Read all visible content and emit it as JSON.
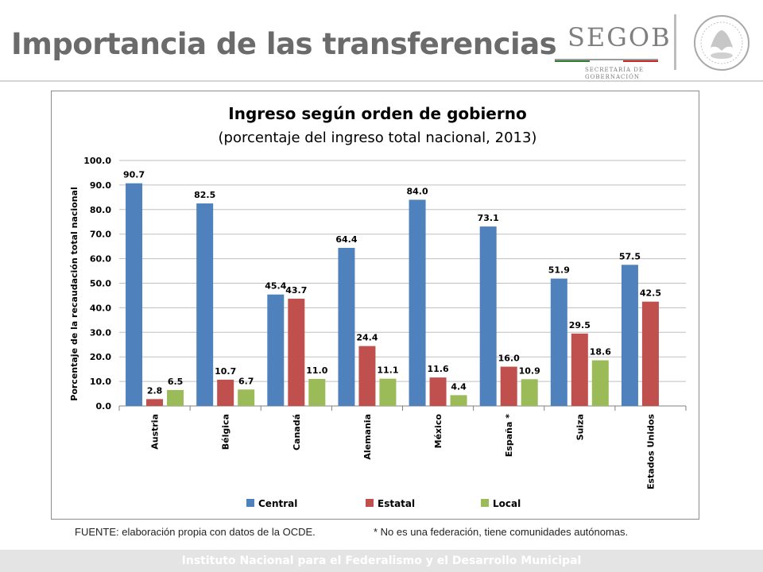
{
  "slide": {
    "title": "Importancia de las transferencias",
    "logo_text": "SEGOB",
    "logo_sub1": "SECRETARÍA DE",
    "logo_sub2": "GOBERNACIÓN",
    "source_note": "FUENTE: elaboración propia con datos de la OCDE.",
    "footnote": "* No es una federación, tiene comunidades autónomas.",
    "footer": "Instituto Nacional para el Federalismo y el Desarrollo Municipal"
  },
  "colors": {
    "central": "#4f81bd",
    "estatal": "#c0504d",
    "local": "#9bbb59",
    "title_gray": "#6b6b6b"
  },
  "chart_data": {
    "type": "bar",
    "title": "Ingreso según orden de gobierno",
    "subtitle": "(porcentaje del ingreso total nacional, 2013)",
    "xlabel": "",
    "ylabel": "Porcentaje de la recaudación total nacional",
    "ylim": [
      0,
      100
    ],
    "yticks": [
      "0.0",
      "10.0",
      "20.0",
      "30.0",
      "40.0",
      "50.0",
      "60.0",
      "70.0",
      "80.0",
      "90.0",
      "100.0"
    ],
    "grid": true,
    "legend": "bottom",
    "categories": [
      "Austria",
      "Bélgica",
      "Canadá",
      "Alemania",
      "México",
      "España *",
      "Suiza",
      "Estados Unidos"
    ],
    "series": [
      {
        "name": "Central",
        "color": "#4f81bd",
        "values": [
          90.7,
          82.5,
          45.4,
          64.4,
          84.0,
          73.1,
          51.9,
          57.5
        ],
        "labels": [
          "90.7",
          "82.5",
          "45.4",
          "64.4",
          "84.0",
          "73.1",
          "51.9",
          "57.5"
        ]
      },
      {
        "name": "Estatal",
        "color": "#c0504d",
        "values": [
          2.8,
          10.7,
          43.7,
          24.4,
          11.6,
          16.0,
          29.5,
          42.5
        ],
        "labels": [
          "2.8",
          "10.7",
          "43.7",
          "24.4",
          "11.6",
          "16.0",
          "29.5",
          "42.5"
        ]
      },
      {
        "name": "Local",
        "color": "#9bbb59",
        "values": [
          6.5,
          6.7,
          11.0,
          11.1,
          4.4,
          10.9,
          18.6,
          null
        ],
        "labels": [
          "6.5",
          "6.7",
          "11.0",
          "11.1",
          "4.4",
          "10.9",
          "18.6",
          null
        ]
      }
    ]
  }
}
